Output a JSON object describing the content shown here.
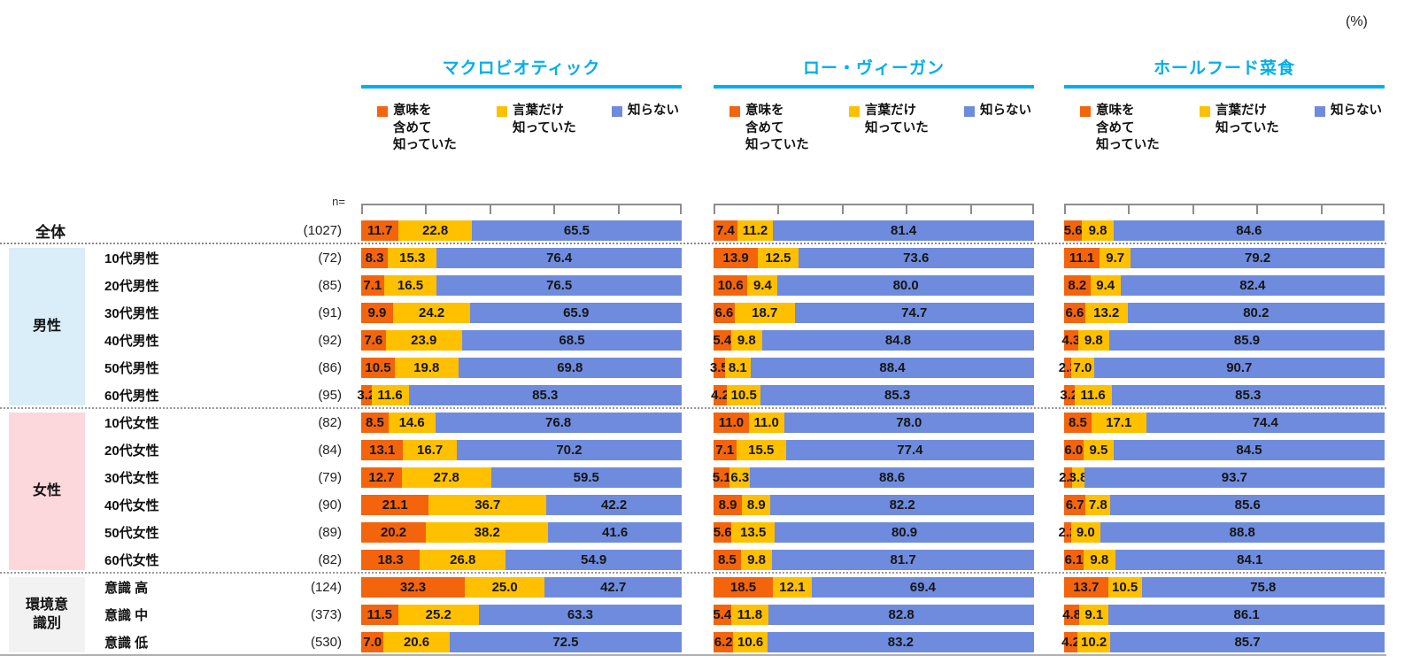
{
  "unit_label": "(%)",
  "n_header": "n=",
  "colors": {
    "title": "#00AEEF",
    "underline": "#00AEEF",
    "series": [
      "#F3640D",
      "#FFC000",
      "#6E8BDE"
    ],
    "group_male_bg": "#D9EEF8",
    "group_female_bg": "#FCD7DB",
    "group_env_bg": "#F2F2F2"
  },
  "chart_data": {
    "type": "bar",
    "subtype": "horizontal-stacked-100",
    "unit": "%",
    "axis": {
      "min": 0,
      "max": 100,
      "tick_interval": 20,
      "grid": false
    },
    "legend_position": "top",
    "series_labels": [
      "意味を含めて知っていた",
      "言葉だけ知っていた",
      "知らない"
    ],
    "legend_lines": [
      [
        "意味を",
        "含めて",
        "知っていた"
      ],
      [
        "言葉だけ",
        "知っていた"
      ],
      [
        "知らない"
      ]
    ],
    "charts": [
      {
        "title": "マクロビオティック"
      },
      {
        "title": "ロー・ヴィーガン"
      },
      {
        "title": "ホールフード菜食"
      }
    ],
    "row_groups": [
      {
        "label": "全体",
        "type": "plain",
        "bg": null,
        "rows": [
          {
            "label": "",
            "n": "(1027)",
            "values": [
              [
                11.7,
                22.8,
                65.5
              ],
              [
                7.4,
                11.2,
                81.4
              ],
              [
                5.6,
                9.8,
                84.6
              ]
            ]
          }
        ]
      },
      {
        "label": "男性",
        "type": "block",
        "bg": "#D9EEF8",
        "rows": [
          {
            "label": "10代男性",
            "n": "(72)",
            "values": [
              [
                8.3,
                15.3,
                76.4
              ],
              [
                13.9,
                12.5,
                73.6
              ],
              [
                11.1,
                9.7,
                79.2
              ]
            ]
          },
          {
            "label": "20代男性",
            "n": "(85)",
            "values": [
              [
                7.1,
                16.5,
                76.5
              ],
              [
                10.6,
                9.4,
                80.0
              ],
              [
                8.2,
                9.4,
                82.4
              ]
            ]
          },
          {
            "label": "30代男性",
            "n": "(91)",
            "values": [
              [
                9.9,
                24.2,
                65.9
              ],
              [
                6.6,
                18.7,
                74.7
              ],
              [
                6.6,
                13.2,
                80.2
              ]
            ]
          },
          {
            "label": "40代男性",
            "n": "(92)",
            "values": [
              [
                7.6,
                23.9,
                68.5
              ],
              [
                5.4,
                9.8,
                84.8
              ],
              [
                4.3,
                9.8,
                85.9
              ]
            ]
          },
          {
            "label": "50代男性",
            "n": "(86)",
            "values": [
              [
                10.5,
                19.8,
                69.8
              ],
              [
                3.5,
                8.1,
                88.4
              ],
              [
                2.3,
                7.0,
                90.7
              ]
            ]
          },
          {
            "label": "60代男性",
            "n": "(95)",
            "values": [
              [
                3.2,
                11.6,
                85.3
              ],
              [
                4.2,
                10.5,
                85.3
              ],
              [
                3.2,
                11.6,
                85.3
              ]
            ]
          }
        ]
      },
      {
        "label": "女性",
        "type": "block",
        "bg": "#FCD7DB",
        "rows": [
          {
            "label": "10代女性",
            "n": "(82)",
            "values": [
              [
                8.5,
                14.6,
                76.8
              ],
              [
                11.0,
                11.0,
                78.0
              ],
              [
                8.5,
                17.1,
                74.4
              ]
            ]
          },
          {
            "label": "20代女性",
            "n": "(84)",
            "values": [
              [
                13.1,
                16.7,
                70.2
              ],
              [
                7.1,
                15.5,
                77.4
              ],
              [
                6.0,
                9.5,
                84.5
              ]
            ]
          },
          {
            "label": "30代女性",
            "n": "(79)",
            "values": [
              [
                12.7,
                27.8,
                59.5
              ],
              [
                5.1,
                6.3,
                88.6
              ],
              [
                2.5,
                3.8,
                93.7
              ]
            ]
          },
          {
            "label": "40代女性",
            "n": "(90)",
            "values": [
              [
                21.1,
                36.7,
                42.2
              ],
              [
                8.9,
                8.9,
                82.2
              ],
              [
                6.7,
                7.8,
                85.6
              ]
            ]
          },
          {
            "label": "50代女性",
            "n": "(89)",
            "values": [
              [
                20.2,
                38.2,
                41.6
              ],
              [
                5.6,
                13.5,
                80.9
              ],
              [
                2.2,
                9.0,
                88.8
              ]
            ]
          },
          {
            "label": "60代女性",
            "n": "(82)",
            "values": [
              [
                18.3,
                26.8,
                54.9
              ],
              [
                8.5,
                9.8,
                81.7
              ],
              [
                6.1,
                9.8,
                84.1
              ]
            ]
          }
        ]
      },
      {
        "label": "環境意\n識別",
        "type": "block",
        "bg": "#F2F2F2",
        "rows": [
          {
            "label": "意識 高",
            "n": "(124)",
            "values": [
              [
                32.3,
                25.0,
                42.7
              ],
              [
                18.5,
                12.1,
                69.4
              ],
              [
                13.7,
                10.5,
                75.8
              ]
            ]
          },
          {
            "label": "意識 中",
            "n": "(373)",
            "values": [
              [
                11.5,
                25.2,
                63.3
              ],
              [
                5.4,
                11.8,
                82.8
              ],
              [
                4.8,
                9.1,
                86.1
              ]
            ]
          },
          {
            "label": "意識 低",
            "n": "(530)",
            "values": [
              [
                7.0,
                20.6,
                72.5
              ],
              [
                6.2,
                10.6,
                83.2
              ],
              [
                4.2,
                10.2,
                85.7
              ]
            ]
          }
        ]
      }
    ]
  }
}
